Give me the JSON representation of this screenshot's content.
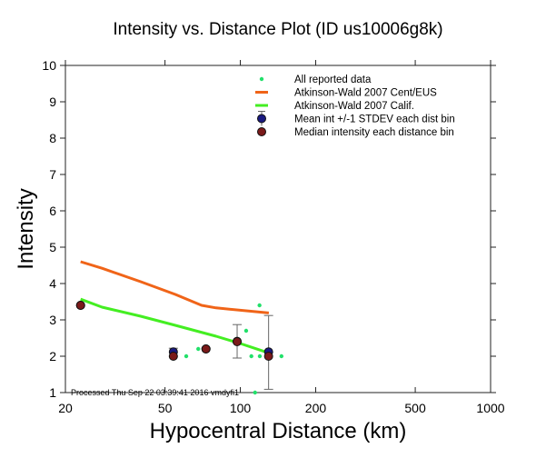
{
  "chart_data": {
    "type": "scatter",
    "title": "Intensity vs. Distance Plot (ID us10006g8k)",
    "xlabel": "Hypocentral Distance (km)",
    "ylabel": "Intensity",
    "xscale": "log",
    "xlim": [
      20,
      1000
    ],
    "ylim": [
      1,
      10
    ],
    "xticks": [
      20,
      50,
      100,
      200,
      500,
      1000
    ],
    "xtick_labels": [
      "20",
      "50",
      "100",
      "200",
      "500",
      "1000"
    ],
    "yticks": [
      1,
      2,
      3,
      4,
      5,
      6,
      7,
      8,
      9,
      10
    ],
    "ytick_labels": [
      "1",
      "2",
      "3",
      "4",
      "5",
      "6",
      "7",
      "8",
      "9",
      "10"
    ],
    "grid": false,
    "legend_position": "top-right",
    "legend": [
      {
        "label": "All reported data",
        "kind": "dot",
        "color": "#22e06a"
      },
      {
        "label": "Atkinson-Wald 2007 Cent/EUS",
        "kind": "line",
        "color": "#f06418"
      },
      {
        "label": "Atkinson-Wald 2007 Calif.",
        "kind": "line",
        "color": "#44ee22"
      },
      {
        "label": "Mean int +/-1 STDEV each dist bin",
        "kind": "errorbar",
        "color": "#1a1a80"
      },
      {
        "label": "Median intensity each distance bin",
        "kind": "marker",
        "color": "#7a1a1a"
      }
    ],
    "series": [
      {
        "name": "Atkinson-Wald 2007 Cent/EUS",
        "type": "line",
        "color": "#f06418",
        "x": [
          23,
          28,
          40,
          55,
          70,
          80,
          130
        ],
        "y": [
          4.6,
          4.42,
          4.05,
          3.7,
          3.4,
          3.33,
          3.19
        ]
      },
      {
        "name": "Atkinson-Wald 2007 Calif.",
        "type": "line",
        "color": "#44ee22",
        "x": [
          23,
          28,
          40,
          55,
          80,
          100,
          130
        ],
        "y": [
          3.57,
          3.35,
          3.1,
          2.85,
          2.55,
          2.35,
          2.09
        ]
      },
      {
        "name": "All reported data",
        "type": "scatter",
        "color": "#22e06a",
        "x": [
          23,
          54,
          60.8,
          67.9,
          97,
          105.5,
          110.7,
          114.5,
          119.3,
          119.6,
          130,
          146
        ],
        "y": [
          3.4,
          2.1,
          2.0,
          2.2,
          2.4,
          2.7,
          2.0,
          1.0,
          3.4,
          2.0,
          2.0,
          2.0
        ]
      },
      {
        "name": "Mean int +/-1 STDEV each dist bin",
        "type": "errorbar",
        "color": "#1a1a80",
        "x": [
          23,
          54,
          72.9,
          97.1,
          129.7
        ],
        "y": [
          3.4,
          2.12,
          2.2,
          2.41,
          2.12
        ],
        "ylow": [
          3.4,
          2.0,
          2.2,
          1.95,
          1.09
        ],
        "yhigh": [
          3.4,
          2.22,
          2.2,
          2.87,
          3.12
        ]
      },
      {
        "name": "Median intensity each distance bin",
        "type": "scatter",
        "color": "#7a1a1a",
        "x": [
          23,
          54,
          72.9,
          97.1,
          129.7
        ],
        "y": [
          3.4,
          2.0,
          2.2,
          2.4,
          2.0
        ]
      }
    ],
    "annotations": [
      "Processed Thu Sep 22 03:39:41 2016 vmdyfi1"
    ]
  }
}
